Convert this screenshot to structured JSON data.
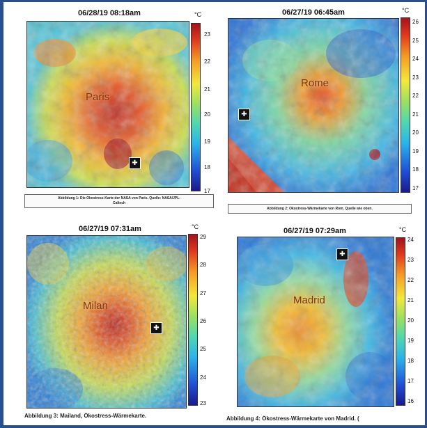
{
  "panels": [
    {
      "id": "paris",
      "timestamp": "06/28/19 08:18am",
      "city": "Paris",
      "unit": "°C",
      "ticks": [
        "23",
        "22",
        "21",
        "20",
        "19",
        "18",
        "17"
      ],
      "caption_lines": [
        "Abbildung 1: Die Ökostress-Karte der NASA von Paris. Quelle: NASA/JPL-",
        "Caltech"
      ]
    },
    {
      "id": "rome",
      "timestamp": "06/27/19 06:45am",
      "city": "Rome",
      "unit": "°C",
      "ticks": [
        "26",
        "25",
        "24",
        "23",
        "22",
        "21",
        "20",
        "19",
        "18",
        "17"
      ],
      "caption_lines": [
        "Abbildung 2: Ökostress-Wärmekarte von Rom. Quelle wie oben."
      ]
    },
    {
      "id": "milan",
      "timestamp": "06/27/19 07:31am",
      "city": "Milan",
      "unit": "°C",
      "ticks": [
        "29",
        "28",
        "27",
        "26",
        "25",
        "24",
        "23"
      ],
      "caption_lines": [
        "Abbildung 3: Mailand, Ökostress-Wärmekarte."
      ]
    },
    {
      "id": "madrid",
      "timestamp": "06/27/19 07:29am",
      "city": "Madrid",
      "unit": "°C",
      "ticks": [
        "24",
        "23",
        "22",
        "21",
        "20",
        "19",
        "18",
        "17",
        "16"
      ],
      "caption_lines": [
        "Abbildung 4: Ökostress-Wärmekarte von Madrid. ("
      ]
    }
  ],
  "colors": {
    "background": "#2a4f8f",
    "cold": "#1f4fd6",
    "cool": "#2bb3ea",
    "mild": "#9be060",
    "warm": "#f4e83a",
    "hot": "#e03a1e"
  },
  "icons": {
    "marker": "crosshair-marker-icon"
  }
}
